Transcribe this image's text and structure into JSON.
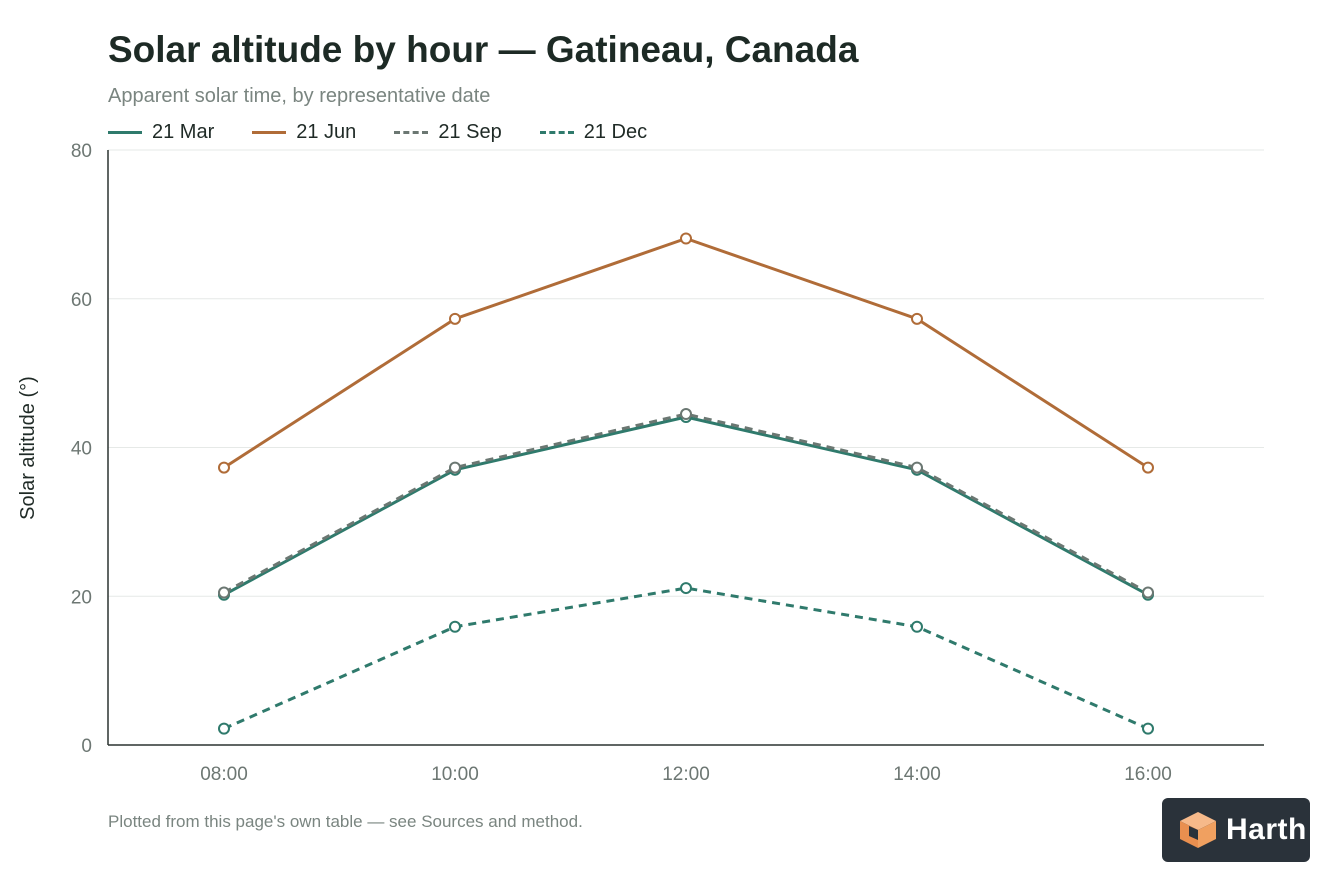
{
  "header": {
    "title": "Solar altitude by hour — Gatineau, Canada",
    "subtitle": "Apparent solar time, by representative date"
  },
  "footnote": "Plotted from this page's own table — see Sources and method.",
  "brand": {
    "name": "Harth",
    "icon": "cube-logo-icon",
    "background": "#2a323a",
    "accent": "#f0a060"
  },
  "chart_data": {
    "type": "line",
    "title": "Solar altitude by hour — Gatineau, Canada",
    "subtitle": "Apparent solar time, by representative date",
    "xlabel": "",
    "ylabel": "Solar altitude (°)",
    "categories": [
      "08:00",
      "10:00",
      "12:00",
      "14:00",
      "16:00"
    ],
    "ylim": [
      0,
      80
    ],
    "yticks": [
      0,
      20,
      40,
      60,
      80
    ],
    "grid": true,
    "legend_position": "top-left",
    "series": [
      {
        "name": "21 Mar",
        "values": [
          20.2,
          37.0,
          44.1,
          37.0,
          20.2
        ],
        "color": "#2f7a6c",
        "dash": "solid"
      },
      {
        "name": "21 Jun",
        "values": [
          37.3,
          57.3,
          68.1,
          57.3,
          37.3
        ],
        "color": "#b06c38",
        "dash": "solid"
      },
      {
        "name": "21 Sep",
        "values": [
          20.5,
          37.3,
          44.5,
          37.3,
          20.5
        ],
        "color": "#6b7772",
        "dash": "dashed"
      },
      {
        "name": "21 Dec",
        "values": [
          2.2,
          15.9,
          21.1,
          15.9,
          2.2
        ],
        "color": "#2f7a6c",
        "dash": "dashed"
      }
    ]
  }
}
